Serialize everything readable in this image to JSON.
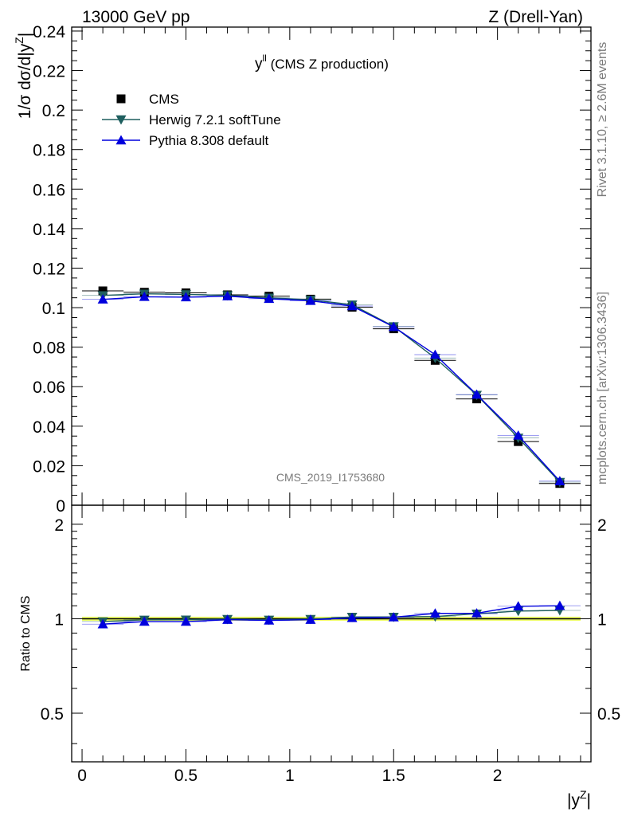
{
  "header": {
    "left": "13000 GeV pp",
    "right": "Z (Drell-Yan)"
  },
  "side_text": {
    "rivet": "Rivet 3.1.10, ≥ 2.6M events",
    "source": "mcplots.cern.ch [arXiv:1306.3436]"
  },
  "watermark": "CMS_2019_I1753680",
  "colors": {
    "data": "#000000",
    "herwig": "#1f5f5f",
    "pythia": "#0000dd",
    "band": "#eeff66"
  },
  "chart_data": {
    "type": "scatter",
    "title": "yᴸᴸ (CMS Z production)",
    "title_parts": {
      "base": "y",
      "sup": "ll",
      "rest": " (CMS Z production)"
    },
    "xlabel": {
      "base": "|y",
      "sup": "Z",
      "rest": "|"
    },
    "ylabel": {
      "base": "1/σ dσ/d|y",
      "sup": "Z",
      "rest": "|"
    },
    "ratio_ylabel": "Ratio to CMS",
    "xlim": [
      -0.05,
      2.45
    ],
    "ylim": [
      0,
      0.242
    ],
    "ratio_ylim": [
      0.35,
      2.3
    ],
    "xticks": [
      "0",
      "0.5",
      "1",
      "1.5",
      "2"
    ],
    "yticks": [
      "0",
      "0.02",
      "0.04",
      "0.06",
      "0.08",
      "0.1",
      "0.12",
      "0.14",
      "0.16",
      "0.18",
      "0.2",
      "0.22",
      "0.24"
    ],
    "ratio_yticks": [
      "0.5",
      "1",
      "2"
    ],
    "legend_position": "top-left",
    "x": [
      0.1,
      0.3,
      0.5,
      0.7,
      0.9,
      1.1,
      1.3,
      1.5,
      1.7,
      1.9,
      2.1,
      2.3
    ],
    "bin_edges": [
      0.0,
      0.2,
      0.4,
      0.6,
      0.8,
      1.0,
      1.2,
      1.4,
      1.6,
      1.8,
      2.0,
      2.2,
      2.4
    ],
    "series": [
      {
        "name": "CMS",
        "marker": "square",
        "values": [
          0.1085,
          0.1078,
          0.1075,
          0.1065,
          0.1058,
          0.1043,
          0.1002,
          0.0893,
          0.0733,
          0.0538,
          0.0322,
          0.011
        ]
      },
      {
        "name": "Herwig 7.2.1 softTune",
        "marker": "triangle-down",
        "values": [
          0.1062,
          0.107,
          0.1067,
          0.1062,
          0.105,
          0.104,
          0.1015,
          0.0905,
          0.0745,
          0.0558,
          0.0341,
          0.0117
        ]
      },
      {
        "name": "Pythia 8.308 default",
        "marker": "triangle-up",
        "values": [
          0.1042,
          0.1055,
          0.1053,
          0.1058,
          0.1045,
          0.1035,
          0.1008,
          0.0903,
          0.0762,
          0.056,
          0.0353,
          0.0122
        ]
      }
    ],
    "ratio_series": [
      {
        "name": "Herwig 7.2.1 softTune",
        "values": [
          0.98,
          0.992,
          0.993,
          0.997,
          0.992,
          0.997,
          1.013,
          1.013,
          1.016,
          1.037,
          1.058,
          1.063
        ]
      },
      {
        "name": "Pythia 8.308 default",
        "values": [
          0.961,
          0.979,
          0.979,
          0.993,
          0.988,
          0.993,
          1.006,
          1.011,
          1.04,
          1.041,
          1.096,
          1.1
        ]
      }
    ],
    "data_band_halfwidth": 0.015
  }
}
